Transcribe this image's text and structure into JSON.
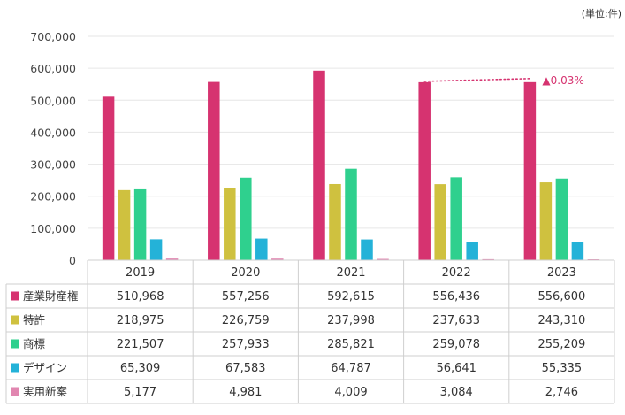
{
  "unit_note": "(単位:件)",
  "growth_label": "▲0.03%",
  "chart_data": {
    "type": "bar",
    "categories": [
      "2019",
      "2020",
      "2021",
      "2022",
      "2023"
    ],
    "ylim": [
      0,
      700000
    ],
    "yticks": [
      "0",
      "100,000",
      "200,000",
      "300,000",
      "400,000",
      "500,000",
      "600,000",
      "700,000"
    ],
    "ytick_values": [
      0,
      100000,
      200000,
      300000,
      400000,
      500000,
      600000,
      700000
    ],
    "grid": true,
    "legend": "table-left",
    "series": [
      {
        "name": "産業財産権",
        "color": "#d63370",
        "values": [
          510968,
          557256,
          592615,
          556436,
          556600
        ],
        "labels": [
          "510,968",
          "557,256",
          "592,615",
          "556,436",
          "556,600"
        ]
      },
      {
        "name": "特許",
        "color": "#cfc13f",
        "values": [
          218975,
          226759,
          237998,
          237633,
          243310
        ],
        "labels": [
          "218,975",
          "226,759",
          "237,998",
          "237,633",
          "243,310"
        ]
      },
      {
        "name": "商標",
        "color": "#2fd08e",
        "values": [
          221507,
          257933,
          285821,
          259078,
          255209
        ],
        "labels": [
          "221,507",
          "257,933",
          "285,821",
          "259,078",
          "255,209"
        ]
      },
      {
        "name": "デザイン",
        "color": "#24b2d8",
        "values": [
          65309,
          67583,
          64787,
          56641,
          55335
        ],
        "labels": [
          "65,309",
          "67,583",
          "64,787",
          "56,641",
          "55,335"
        ]
      },
      {
        "name": "実用新案",
        "color": "#e186b0",
        "values": [
          5177,
          4981,
          4009,
          3084,
          2746
        ],
        "labels": [
          "5,177",
          "4,981",
          "4,009",
          "3,084",
          "2,746"
        ]
      }
    ]
  }
}
